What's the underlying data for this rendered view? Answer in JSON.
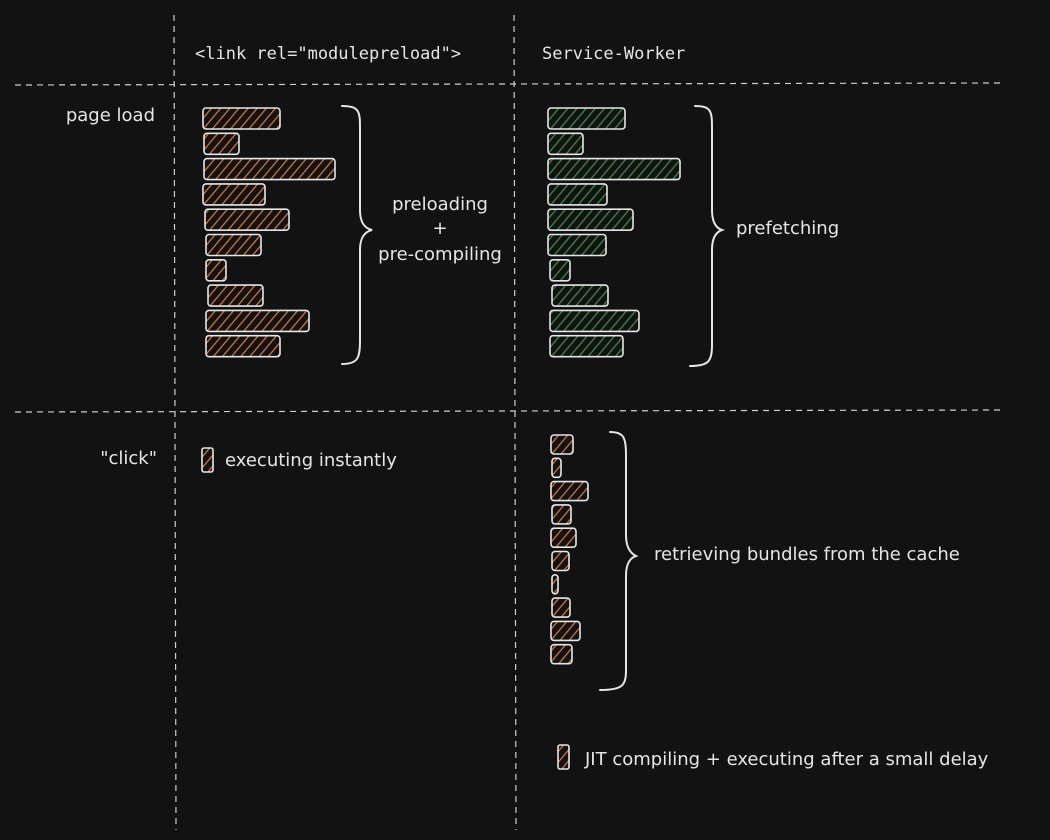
{
  "columns": {
    "modulepreload": "<link rel=\"modulepreload\">",
    "service_worker": "Service-Worker"
  },
  "rows": {
    "page_load": "page load",
    "click": "\"click\""
  },
  "annotations": {
    "preloading": "preloading",
    "plus": "+",
    "pre_compiling": "pre-compiling",
    "prefetching": "prefetching",
    "executing_instantly": "executing instantly",
    "retrieving": "retrieving bundles from the cache",
    "jit": "JIT compiling + executing after a small delay"
  },
  "colors": {
    "background": "#121212",
    "orange_hatch": "#e07b39",
    "green_hatch": "#2f6b35",
    "stroke": "#e6e6e6"
  }
}
